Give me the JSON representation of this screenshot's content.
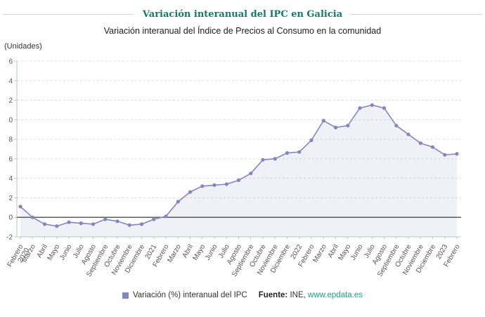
{
  "header": {
    "title": "Variación interanual del IPC en Galicia",
    "subtitle": "Variación interanual del Índice de Precios al Consumo en la comunidad"
  },
  "chart": {
    "units_label": "(Unidades)"
  },
  "legend": {
    "series_label": "Variación (%) interanual del IPC",
    "source_prefix": "Fuente:",
    "source_name": "INE, ",
    "source_link": "www.epdata.es"
  },
  "colors": {
    "title": "#0f7b6c",
    "series": "#8486bf",
    "area_fill": "rgba(132,134,191,0.12)",
    "grid": "#dadee1",
    "axis": "#b8cac2",
    "zero_line": "#4d4d4d",
    "tick_text": "#555555",
    "link": "#16a08c"
  },
  "chart_data": {
    "type": "line",
    "title": "Variación interanual del IPC en Galicia",
    "subtitle": "Variación interanual del Índice de Precios al Consumo en la comunidad",
    "series_name": "Variación (%) interanual del IPC",
    "xlabel": "",
    "ylabel": "(Unidades)",
    "ylim": [
      -2,
      16
    ],
    "y_step": 2,
    "y_tick_labels_visible": [
      "-2",
      "0",
      "2",
      "4",
      "6",
      "8",
      "0",
      "2",
      "4",
      "6"
    ],
    "grid": true,
    "legend_position": "bottom",
    "marker": "circle",
    "categories": [
      "Febrero 2020",
      "Marzo",
      "Abril",
      "Mayo",
      "Junio",
      "Julio",
      "Agosto",
      "Septiembre",
      "Octubre",
      "Noviembre",
      "Diciembre",
      "2021",
      "Febrero",
      "Marzo",
      "Abril",
      "Mayo",
      "Junio",
      "Julio",
      "Agosto",
      "Septiembre",
      "Octubre",
      "Noviembre",
      "Diciembre",
      "2022",
      "Febrero",
      "Marzo",
      "Abril",
      "Mayo",
      "Junio",
      "Julio",
      "Agosto",
      "Septiembre",
      "Octubre",
      "Noviembre",
      "Diciembre",
      "2023",
      "Febrero"
    ],
    "values": [
      1.1,
      0.0,
      -0.7,
      -0.9,
      -0.5,
      -0.6,
      -0.7,
      -0.2,
      -0.4,
      -0.8,
      -0.7,
      -0.2,
      0.1,
      1.6,
      2.6,
      3.2,
      3.3,
      3.4,
      3.8,
      4.5,
      5.9,
      6.0,
      6.6,
      6.7,
      7.9,
      9.9,
      9.2,
      9.4,
      11.2,
      11.5,
      11.2,
      9.4,
      8.5,
      7.6,
      7.2,
      6.4,
      6.5
    ]
  }
}
